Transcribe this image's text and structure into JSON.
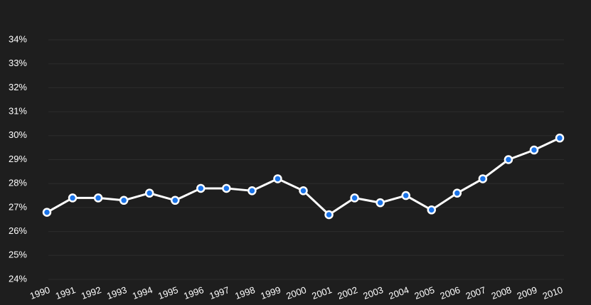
{
  "chart_data": {
    "type": "line",
    "categories": [
      "1990",
      "1991",
      "1992",
      "1993",
      "1994",
      "1995",
      "1996",
      "1997",
      "1998",
      "1999",
      "2000",
      "2001",
      "2002",
      "2003",
      "2004",
      "2005",
      "2006",
      "2007",
      "2008",
      "2009",
      "2010"
    ],
    "values": [
      26.8,
      27.4,
      27.4,
      27.3,
      27.6,
      27.3,
      27.8,
      27.8,
      27.7,
      28.2,
      27.7,
      26.7,
      27.4,
      27.2,
      27.5,
      26.9,
      27.6,
      28.2,
      29.0,
      29.4,
      29.9
    ],
    "color": "#ffffff",
    "marker_color": "#1a73e8",
    "ylim": [
      24,
      34
    ],
    "yticks": [
      {
        "value": 24,
        "label": "24%"
      },
      {
        "value": 25,
        "label": "25%"
      },
      {
        "value": 26,
        "label": "26%"
      },
      {
        "value": 27,
        "label": "27%"
      },
      {
        "value": 28,
        "label": "28%"
      },
      {
        "value": 29,
        "label": "29%"
      },
      {
        "value": 30,
        "label": "30%"
      },
      {
        "value": 31,
        "label": "31%"
      },
      {
        "value": 32,
        "label": "32%"
      },
      {
        "value": 33,
        "label": "33%"
      },
      {
        "value": 34,
        "label": "34%"
      }
    ],
    "grid": true
  }
}
